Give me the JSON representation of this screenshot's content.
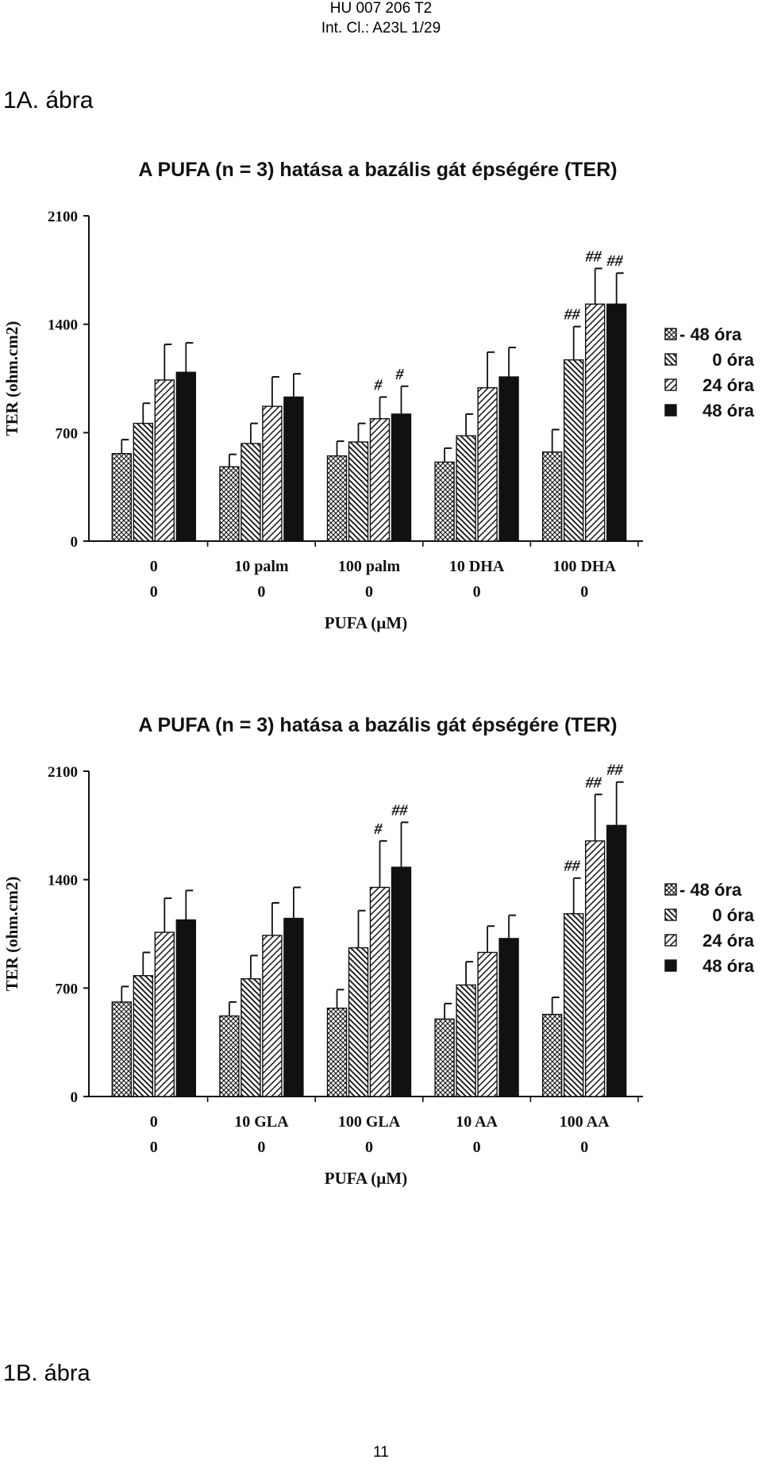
{
  "header": {
    "doc_id": "HU 007 206 T2",
    "classification": "Int. Cl.: A23L 1/29"
  },
  "figure_a_label": "1A. ábra",
  "figure_b_label": "1B. ábra",
  "page_number": "11",
  "colors": {
    "ink": "#111111",
    "paper": "#ffffff"
  },
  "chart_data": [
    {
      "type": "bar",
      "title": "A PUFA (n = 3) hatása a bazális gát épségére (TER)",
      "ylabel": "TER (ohm.cm2)",
      "xlabel": "PUFA (µM)",
      "ylim": [
        0,
        2100
      ],
      "yticks": [
        "0",
        "700",
        "1400",
        "2100"
      ],
      "categories": [
        "0",
        "10 palm",
        "100 palm",
        "10 DHA",
        "100 DHA"
      ],
      "sublabels": [
        "0",
        "0",
        "0",
        "0",
        "0"
      ],
      "series": [
        {
          "name": "- 48 óra",
          "legend_name": "- 48 óra",
          "pattern": "crosshatch",
          "values": [
            565,
            480,
            550,
            510,
            575
          ],
          "errors": [
            90,
            80,
            95,
            90,
            145
          ],
          "annotations": [
            "",
            "",
            "",
            "",
            ""
          ]
        },
        {
          "name": "0 óra",
          "legend_name": "0 óra",
          "pattern": "back",
          "values": [
            760,
            630,
            640,
            680,
            1170
          ],
          "errors": [
            130,
            130,
            120,
            140,
            215
          ],
          "annotations": [
            "",
            "",
            "",
            "",
            "##"
          ]
        },
        {
          "name": "24 óra",
          "legend_name": "24 óra",
          "pattern": "fwd",
          "values": [
            1040,
            870,
            790,
            990,
            1530
          ],
          "errors": [
            230,
            190,
            140,
            230,
            230
          ],
          "annotations": [
            "",
            "",
            "#",
            "",
            "##"
          ]
        },
        {
          "name": "48 óra",
          "legend_name": "48 óra",
          "pattern": "solid",
          "values": [
            1090,
            930,
            820,
            1060,
            1530
          ],
          "errors": [
            190,
            150,
            180,
            190,
            200
          ],
          "annotations": [
            "",
            "",
            "#",
            "",
            "##"
          ]
        }
      ]
    },
    {
      "type": "bar",
      "title": "A PUFA (n = 3) hatása a bazális gát épségére (TER)",
      "ylabel": "TER (ohm.cm2)",
      "xlabel": "PUFA (µM)",
      "ylim": [
        0,
        2100
      ],
      "yticks": [
        "0",
        "700",
        "1400",
        "2100"
      ],
      "categories": [
        "0",
        "10 GLA",
        "100 GLA",
        "10 AA",
        "100 AA"
      ],
      "sublabels": [
        "0",
        "0",
        "0",
        "0",
        "0"
      ],
      "series": [
        {
          "name": "- 48 óra",
          "legend_name": "- 48 óra",
          "pattern": "crosshatch",
          "values": [
            610,
            520,
            570,
            500,
            530
          ],
          "errors": [
            100,
            90,
            120,
            100,
            110
          ],
          "annotations": [
            "",
            "",
            "",
            "",
            ""
          ]
        },
        {
          "name": "0 óra",
          "legend_name": "0 óra",
          "pattern": "back",
          "values": [
            780,
            760,
            960,
            720,
            1180
          ],
          "errors": [
            150,
            150,
            240,
            150,
            230
          ],
          "annotations": [
            "",
            "",
            "",
            "",
            "##"
          ]
        },
        {
          "name": "24 óra",
          "legend_name": "24 óra",
          "pattern": "fwd",
          "values": [
            1060,
            1040,
            1350,
            930,
            1650
          ],
          "errors": [
            220,
            210,
            300,
            170,
            300
          ],
          "annotations": [
            "",
            "",
            "#",
            "",
            "##"
          ]
        },
        {
          "name": "48 óra",
          "legend_name": "48 óra",
          "pattern": "solid",
          "values": [
            1140,
            1150,
            1480,
            1020,
            1750
          ],
          "errors": [
            190,
            200,
            290,
            150,
            280
          ],
          "annotations": [
            "",
            "",
            "##",
            "",
            "##"
          ]
        }
      ]
    }
  ]
}
